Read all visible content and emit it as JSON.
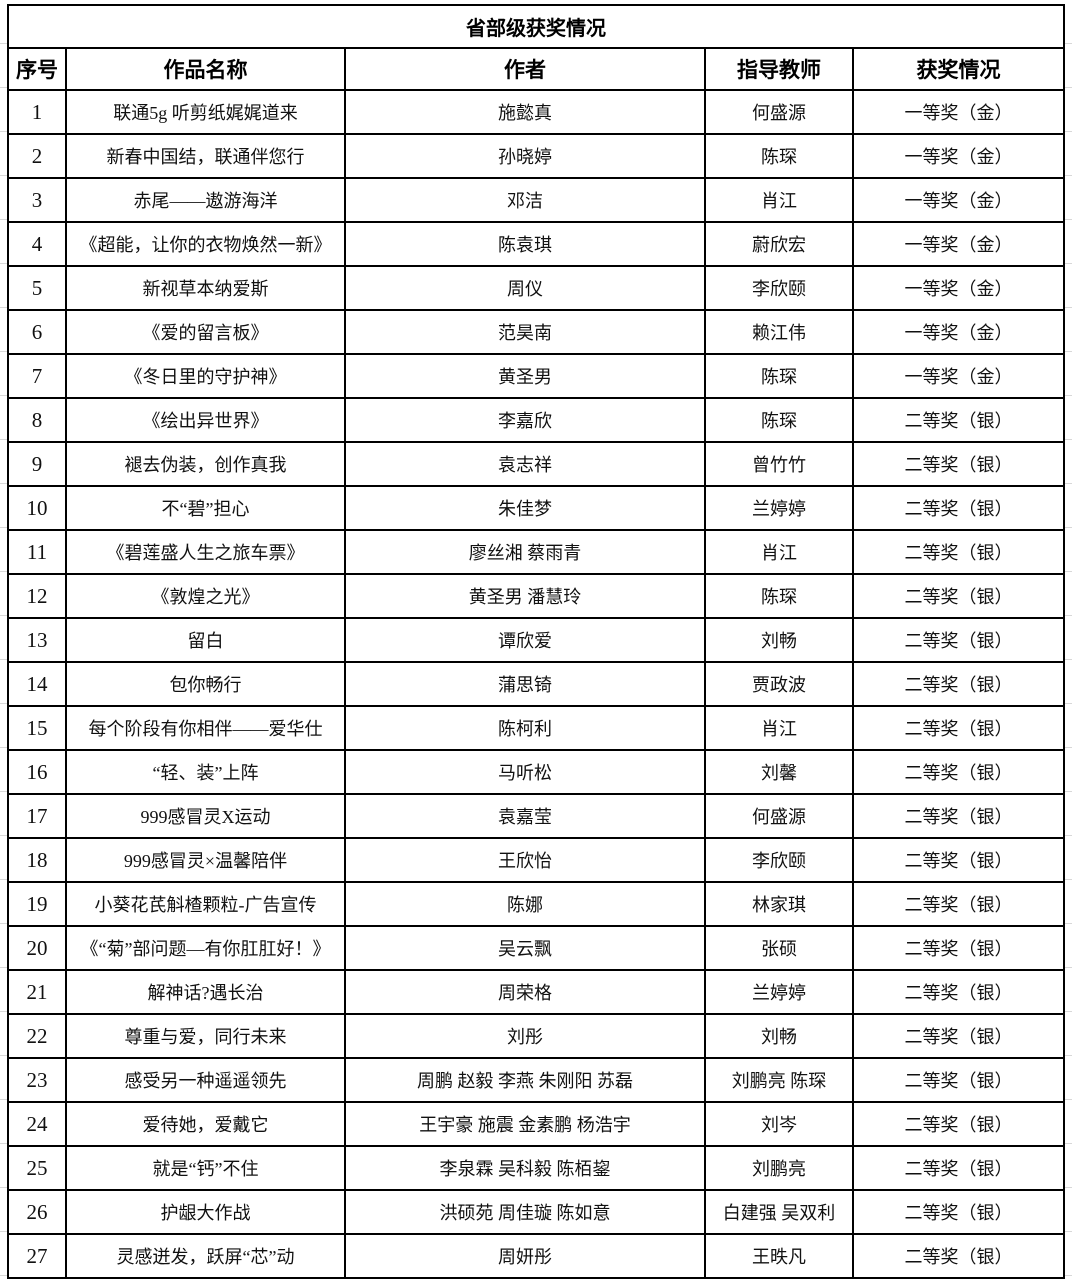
{
  "title": "省部级获奖情况",
  "columns": [
    "序号",
    "作品名称",
    "作者",
    "指导教师",
    "获奖情况"
  ],
  "rows": [
    [
      "1",
      "联通5g 听剪纸娓娓道来",
      "施懿真",
      "何盛源",
      "一等奖（金）"
    ],
    [
      "2",
      "新春中国结，联通伴您行",
      "孙晓婷",
      "陈琛",
      "一等奖（金）"
    ],
    [
      "3",
      "赤尾——遨游海洋",
      "邓洁",
      "肖江",
      "一等奖（金）"
    ],
    [
      "4",
      "《超能，让你的衣物焕然一新》",
      "陈袁琪",
      "蔚欣宏",
      "一等奖（金）"
    ],
    [
      "5",
      "新视草本纳爱斯",
      "周仪",
      "李欣颐",
      "一等奖（金）"
    ],
    [
      "6",
      "《爱的留言板》",
      "范昊南",
      "赖江伟",
      "一等奖（金）"
    ],
    [
      "7",
      "《冬日里的守护神》",
      "黄圣男",
      "陈琛",
      "一等奖（金）"
    ],
    [
      "8",
      "《绘出异世界》",
      "李嘉欣",
      "陈琛",
      "二等奖（银）"
    ],
    [
      "9",
      "褪去伪装，创作真我",
      "袁志祥",
      "曾竹竹",
      "二等奖（银）"
    ],
    [
      "10",
      "不“碧”担心",
      "朱佳梦",
      "兰婷婷",
      "二等奖（银）"
    ],
    [
      "11",
      "《碧莲盛人生之旅车票》",
      "廖丝湘  蔡雨青",
      "肖江",
      "二等奖（银）"
    ],
    [
      "12",
      "《敦煌之光》",
      "黄圣男  潘慧玲",
      "陈琛",
      "二等奖（银）"
    ],
    [
      "13",
      "留白",
      "谭欣爱",
      "刘畅",
      "二等奖（银）"
    ],
    [
      "14",
      "包你畅行",
      "蒲思锜",
      "贾政波",
      "二等奖（银）"
    ],
    [
      "15",
      "每个阶段有你相伴——爱华仕",
      "陈柯利",
      "肖江",
      "二等奖（银）"
    ],
    [
      "16",
      "“轻、装”上阵",
      "马听松",
      "刘馨",
      "二等奖（银）"
    ],
    [
      "17",
      "999感冒灵X运动",
      "袁嘉莹",
      "何盛源",
      "二等奖（银）"
    ],
    [
      "18",
      "999感冒灵×温馨陪伴",
      "王欣怡",
      "李欣颐",
      "二等奖（银）"
    ],
    [
      "19",
      "小葵花芪斛楂颗粒-广告宣传",
      "陈娜",
      "林家琪",
      "二等奖（银）"
    ],
    [
      "20",
      "《“菊”部问题—有你肛肛好！》",
      "吴云飘",
      "张硕",
      "二等奖（银）"
    ],
    [
      "21",
      "解神话?遇长治",
      "周荣格",
      "兰婷婷",
      "二等奖（银）"
    ],
    [
      "22",
      "尊重与爱，同行未来",
      "刘彤",
      "刘畅",
      "二等奖（银）"
    ],
    [
      "23",
      "感受另一种遥遥领先",
      "周鹏  赵毅  李燕  朱刚阳  苏磊",
      "刘鹏亮 陈琛",
      "二等奖（银）"
    ],
    [
      "24",
      "爱待她，爱戴它",
      "王宇豪  施震  金素鹏  杨浩宇",
      "刘岑",
      "二等奖（银）"
    ],
    [
      "25",
      "就是“钙”不住",
      "李泉霖  吴科毅  陈栢鋆",
      "刘鹏亮",
      "二等奖（银）"
    ],
    [
      "26",
      "护龈大作战",
      "洪硕苑  周佳璇  陈如意",
      "白建强 吴双利",
      "二等奖（银）"
    ],
    [
      "27",
      "灵感迸发，跃屏“芯”动",
      "周妍彤",
      "王昳凡",
      "二等奖（银）"
    ]
  ]
}
